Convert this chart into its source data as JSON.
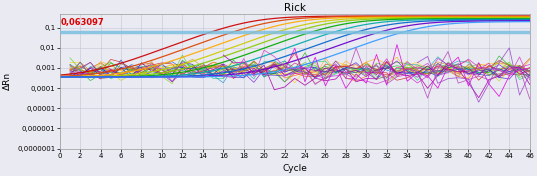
{
  "title": "Rick",
  "xlabel": "Cycle",
  "ylabel": "ΔRn",
  "threshold": 0.063097,
  "threshold_label": "0,063097",
  "threshold_color": "#7bbfde",
  "xlim": [
    0,
    46
  ],
  "ylim_log": [
    1e-07,
    0.5
  ],
  "yticks": [
    0.1,
    0.01,
    0.001,
    0.0001,
    1e-05,
    1e-06,
    1e-07
  ],
  "ytick_labels": [
    "0,1",
    "0,01",
    "0,001",
    "0,0001",
    "0,00001",
    "0,000001",
    "0,0000001"
  ],
  "xticks": [
    0,
    2,
    4,
    6,
    8,
    10,
    12,
    14,
    16,
    18,
    20,
    22,
    24,
    26,
    28,
    30,
    32,
    34,
    36,
    38,
    40,
    42,
    44,
    46
  ],
  "background_color": "#eaeaf2",
  "plot_bg_color": "#eaeaf2",
  "sigmoidal_curves": [
    {
      "color": "#cc0000",
      "ct": 18.5,
      "amplitude": 0.38
    },
    {
      "color": "#dd4400",
      "ct": 20.5,
      "amplitude": 0.36
    },
    {
      "color": "#ffaa00",
      "ct": 22.5,
      "amplitude": 0.34
    },
    {
      "color": "#cccc00",
      "ct": 24.5,
      "amplitude": 0.32
    },
    {
      "color": "#88cc00",
      "ct": 26.0,
      "amplitude": 0.3
    },
    {
      "color": "#00aa00",
      "ct": 27.5,
      "amplitude": 0.28
    },
    {
      "color": "#00aaaa",
      "ct": 29.5,
      "amplitude": 0.26
    },
    {
      "color": "#0066cc",
      "ct": 31.5,
      "amplitude": 0.24
    },
    {
      "color": "#6600cc",
      "ct": 33.5,
      "amplitude": 0.22
    },
    {
      "color": "#3399ff",
      "ct": 35.5,
      "amplitude": 0.2
    }
  ],
  "flat_noisy_curves": [
    {
      "color": "#cc0000",
      "base": 0.0009,
      "sigma": 0.55
    },
    {
      "color": "#dd3300",
      "base": 0.0008,
      "sigma": 0.6
    },
    {
      "color": "#ff6600",
      "base": 0.0007,
      "sigma": 0.5
    },
    {
      "color": "#ffaa00",
      "base": 0.001,
      "sigma": 0.55
    },
    {
      "color": "#ffcc00",
      "base": 0.0009,
      "sigma": 0.6
    },
    {
      "color": "#cccc00",
      "base": 0.0008,
      "sigma": 0.5
    },
    {
      "color": "#88cc00",
      "base": 0.0007,
      "sigma": 0.55
    },
    {
      "color": "#44cc00",
      "base": 0.0009,
      "sigma": 0.6
    },
    {
      "color": "#00aa00",
      "base": 0.0008,
      "sigma": 0.5
    },
    {
      "color": "#00cc66",
      "base": 0.0007,
      "sigma": 0.55
    },
    {
      "color": "#00aaaa",
      "base": 0.0009,
      "sigma": 0.6
    },
    {
      "color": "#0088cc",
      "base": 0.0008,
      "sigma": 0.5
    },
    {
      "color": "#0044cc",
      "base": 0.0007,
      "sigma": 0.55
    },
    {
      "color": "#3300cc",
      "base": 0.0006,
      "sigma": 0.6
    },
    {
      "color": "#6600cc",
      "base": 0.0008,
      "sigma": 0.5
    },
    {
      "color": "#9900cc",
      "base": 0.0007,
      "sigma": 0.55
    },
    {
      "color": "#cc00cc",
      "base": 0.0006,
      "sigma": 0.6
    },
    {
      "color": "#cc0066",
      "base": 0.0008,
      "sigma": 0.5
    },
    {
      "color": "#996633",
      "base": 0.0007,
      "sigma": 0.55
    },
    {
      "color": "#cc9900",
      "base": 0.0009,
      "sigma": 0.5
    }
  ],
  "late_purple_curves": [
    {
      "color": "#cc44cc",
      "x_start": 16,
      "base": 0.0008,
      "sigma": 1.2
    },
    {
      "color": "#aa00aa",
      "x_start": 16,
      "base": 0.0006,
      "sigma": 1.3
    },
    {
      "color": "#dd00dd",
      "x_start": 22,
      "base": 0.0005,
      "sigma": 1.4
    },
    {
      "color": "#bb44bb",
      "x_start": 28,
      "base": 0.0004,
      "sigma": 1.5
    },
    {
      "color": "#9944cc",
      "x_start": 35,
      "base": 0.0003,
      "sigma": 1.6
    }
  ]
}
